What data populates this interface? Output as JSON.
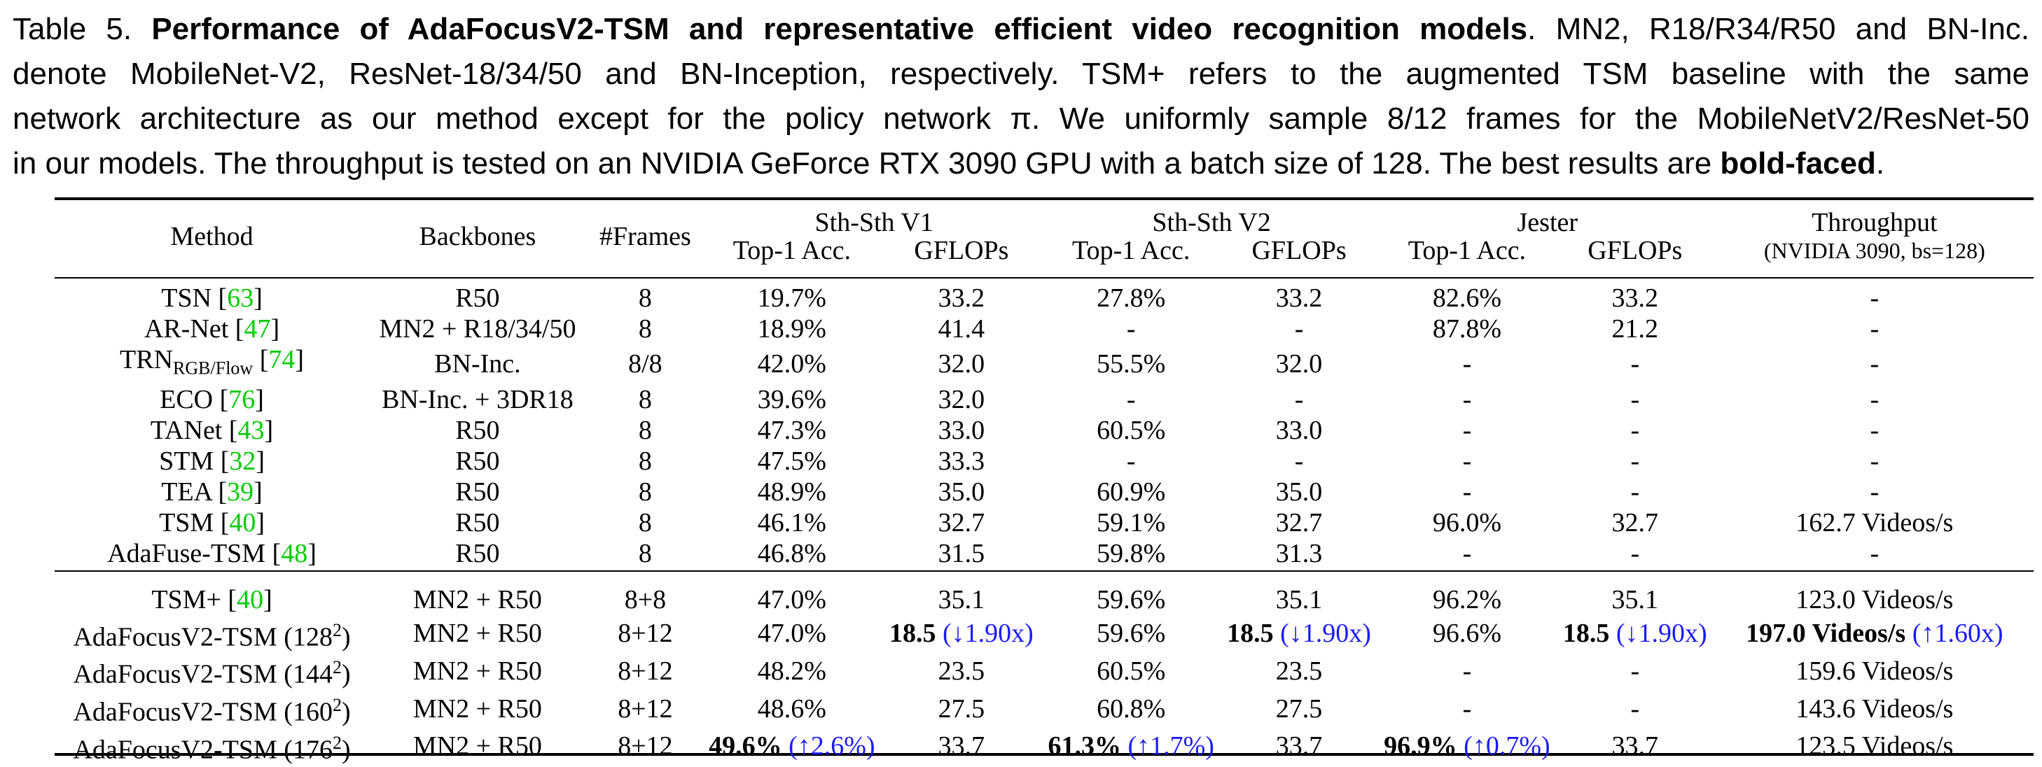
{
  "caption": {
    "label": "Table 5.",
    "title": "Performance of AdaFocusV2-TSM and representative efficient video recognition models",
    "line1_rest": ". MN2, R18/R34/R50 and BN-Inc.",
    "line2": "denote MobileNet-V2, ResNet-18/34/50 and BN-Inception, respectively.  TSM+ refers to the augmented TSM baseline with the same",
    "line3": "network architecture as our method except for the policy network π. We uniformly sample 8/12 frames for the MobileNetV2/ResNet-50",
    "line4_pre": "in our models. The throughput is tested on an NVIDIA GeForce RTX 3090 GPU with a batch size of 128. The best results are ",
    "line4_bold": "bold-faced",
    "line4_end": "."
  },
  "header": {
    "method": "Method",
    "backbones": "Backbones",
    "frames": "#Frames",
    "sth1": "Sth-Sth V1",
    "sth2": "Sth-Sth V2",
    "jester": "Jester",
    "throughput": "Throughput",
    "throughput_sub": "(NVIDIA 3090, bs=128)",
    "top1": "Top-1 Acc.",
    "gflops": "GFLOPs"
  },
  "group1": [
    {
      "name": "TSN",
      "ref": "63",
      "backbone": "R50",
      "frames": "8",
      "s1acc": "19.7%",
      "s1gf": "33.2",
      "s2acc": "27.8%",
      "s2gf": "33.2",
      "jacc": "82.6%",
      "jgf": "33.2",
      "tp": "-"
    },
    {
      "name": "AR-Net",
      "ref": "47",
      "backbone": "MN2 + R18/34/50",
      "frames": "8",
      "s1acc": "18.9%",
      "s1gf": "41.4",
      "s2acc": "-",
      "s2gf": "-",
      "jacc": "87.8%",
      "jgf": "21.2",
      "tp": "-"
    },
    {
      "name": "TRN",
      "sub": "RGB/Flow",
      "ref": "74",
      "backbone": "BN-Inc.",
      "frames": "8/8",
      "s1acc": "42.0%",
      "s1gf": "32.0",
      "s2acc": "55.5%",
      "s2gf": "32.0",
      "jacc": "-",
      "jgf": "-",
      "tp": "-"
    },
    {
      "name": "ECO",
      "ref": "76",
      "backbone": "BN-Inc. + 3DR18",
      "frames": "8",
      "s1acc": "39.6%",
      "s1gf": "32.0",
      "s2acc": "-",
      "s2gf": "-",
      "jacc": "-",
      "jgf": "-",
      "tp": "-"
    },
    {
      "name": "TANet",
      "ref": "43",
      "backbone": "R50",
      "frames": "8",
      "s1acc": "47.3%",
      "s1gf": "33.0",
      "s2acc": "60.5%",
      "s2gf": "33.0",
      "jacc": "-",
      "jgf": "-",
      "tp": "-"
    },
    {
      "name": "STM",
      "ref": "32",
      "backbone": "R50",
      "frames": "8",
      "s1acc": "47.5%",
      "s1gf": "33.3",
      "s2acc": "-",
      "s2gf": "-",
      "jacc": "-",
      "jgf": "-",
      "tp": "-"
    },
    {
      "name": "TEA",
      "ref": "39",
      "backbone": "R50",
      "frames": "8",
      "s1acc": "48.9%",
      "s1gf": "35.0",
      "s2acc": "60.9%",
      "s2gf": "35.0",
      "jacc": "-",
      "jgf": "-",
      "tp": "-"
    },
    {
      "name": "TSM",
      "ref": "40",
      "backbone": "R50",
      "frames": "8",
      "s1acc": "46.1%",
      "s1gf": "32.7",
      "s2acc": "59.1%",
      "s2gf": "32.7",
      "jacc": "96.0%",
      "jgf": "32.7",
      "tp": "162.7 Videos/s"
    },
    {
      "name": "AdaFuse-TSM",
      "ref": "48",
      "backbone": "R50",
      "frames": "8",
      "s1acc": "46.8%",
      "s1gf": "31.5",
      "s2acc": "59.8%",
      "s2gf": "31.3",
      "jacc": "-",
      "jgf": "-",
      "tp": "-"
    }
  ],
  "group2": [
    {
      "name": "TSM+",
      "ref": "40",
      "backbone": "MN2 + R50",
      "frames": "8+8",
      "s1acc": "47.0%",
      "s1gf": "35.1",
      "s2acc": "59.6%",
      "s2gf": "35.1",
      "jacc": "96.2%",
      "jgf": "35.1",
      "tp": "123.0 Videos/s"
    },
    {
      "name": "AdaFocusV2-TSM (128",
      "sup": "2",
      "close": ")",
      "backbone": "MN2 + R50",
      "frames": "8+12",
      "s1acc": "47.0%",
      "s1gf_bold": "18.5",
      "s1gf_note": "(↓1.90x)",
      "s2acc": "59.6%",
      "s2gf_bold": "18.5",
      "s2gf_note": "(↓1.90x)",
      "jacc": "96.6%",
      "jgf_bold": "18.5",
      "jgf_note": "(↓1.90x)",
      "tp_bold": "197.0 Videos/s",
      "tp_note": "(↑1.60x)"
    },
    {
      "name": "AdaFocusV2-TSM (144",
      "sup": "2",
      "close": ")",
      "backbone": "MN2 + R50",
      "frames": "8+12",
      "s1acc": "48.2%",
      "s1gf": "23.5",
      "s2acc": "60.5%",
      "s2gf": "23.5",
      "jacc": "-",
      "jgf": "-",
      "tp": "159.6 Videos/s"
    },
    {
      "name": "AdaFocusV2-TSM (160",
      "sup": "2",
      "close": ")",
      "backbone": "MN2 + R50",
      "frames": "8+12",
      "s1acc": "48.6%",
      "s1gf": "27.5",
      "s2acc": "60.8%",
      "s2gf": "27.5",
      "jacc": "-",
      "jgf": "-",
      "tp": "143.6 Videos/s"
    },
    {
      "name": "AdaFocusV2-TSM (176",
      "sup": "2",
      "close": ")",
      "backbone": "MN2 + R50",
      "frames": "8+12",
      "s1acc_bold": "49.6%",
      "s1acc_note": "(↑2.6%)",
      "s1gf": "33.7",
      "s2acc_bold": "61.3%",
      "s2acc_note": "(↑1.7%)",
      "s2gf": "33.7",
      "jacc_bold": "96.9%",
      "jacc_note": "(↑0.7%)",
      "jgf": "33.7",
      "tp": "123.5 Videos/s"
    }
  ]
}
